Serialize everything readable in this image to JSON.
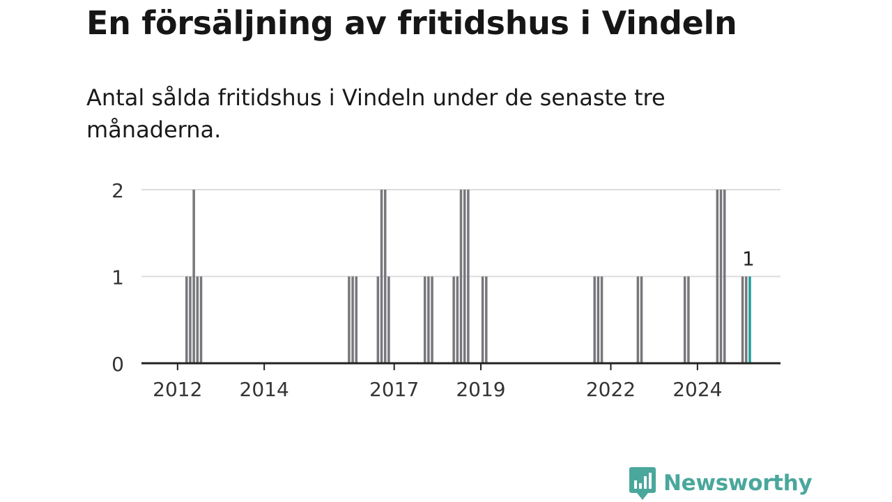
{
  "title": "En försäljning av fritidshus i Vindeln",
  "subtitle": "Antal sålda fritidshus i Vindeln under de senaste tre månaderna.",
  "brand": {
    "name": "Newsworthy",
    "color": "#4aa79c",
    "icon": "newsworthy-logo-icon"
  },
  "chart_data": {
    "type": "bar",
    "xlabel": "",
    "ylabel": "",
    "ylim": [
      0,
      2
    ],
    "yticks": [
      0,
      1,
      2
    ],
    "xlim": [
      "2011-03",
      "2025-12"
    ],
    "xticks": [
      {
        "label": "2012",
        "date": "2012-01"
      },
      {
        "label": "2014",
        "date": "2014-01"
      },
      {
        "label": "2017",
        "date": "2017-01"
      },
      {
        "label": "2019",
        "date": "2019-01"
      },
      {
        "label": "2022",
        "date": "2022-01"
      },
      {
        "label": "2024",
        "date": "2024-01"
      }
    ],
    "grid": true,
    "bar_color": "#78777c",
    "highlight_color": "#1a9e9a",
    "data_label": "1",
    "bars": [
      {
        "period": "2012-03",
        "value": 1
      },
      {
        "period": "2012-04",
        "value": 1
      },
      {
        "period": "2012-05",
        "value": 2
      },
      {
        "period": "2012-06",
        "value": 1
      },
      {
        "period": "2012-07",
        "value": 1
      },
      {
        "period": "2015-12",
        "value": 1
      },
      {
        "period": "2016-01",
        "value": 1
      },
      {
        "period": "2016-02",
        "value": 1
      },
      {
        "period": "2016-08",
        "value": 1
      },
      {
        "period": "2016-09",
        "value": 2
      },
      {
        "period": "2016-10",
        "value": 2
      },
      {
        "period": "2016-11",
        "value": 1
      },
      {
        "period": "2017-09",
        "value": 1
      },
      {
        "period": "2017-10",
        "value": 1
      },
      {
        "period": "2017-11",
        "value": 1
      },
      {
        "period": "2018-05",
        "value": 1
      },
      {
        "period": "2018-06",
        "value": 1
      },
      {
        "period": "2018-07",
        "value": 2
      },
      {
        "period": "2018-08",
        "value": 2
      },
      {
        "period": "2018-09",
        "value": 2
      },
      {
        "period": "2019-01",
        "value": 1
      },
      {
        "period": "2019-02",
        "value": 1
      },
      {
        "period": "2021-08",
        "value": 1
      },
      {
        "period": "2021-09",
        "value": 1
      },
      {
        "period": "2021-10",
        "value": 1
      },
      {
        "period": "2022-08",
        "value": 1
      },
      {
        "period": "2022-09",
        "value": 1
      },
      {
        "period": "2023-09",
        "value": 1
      },
      {
        "period": "2023-10",
        "value": 1
      },
      {
        "period": "2024-06",
        "value": 2
      },
      {
        "period": "2024-07",
        "value": 2
      },
      {
        "period": "2024-08",
        "value": 2
      },
      {
        "period": "2025-01",
        "value": 1
      },
      {
        "period": "2025-02",
        "value": 1
      },
      {
        "period": "2025-03",
        "value": 1,
        "highlight": true
      }
    ]
  }
}
